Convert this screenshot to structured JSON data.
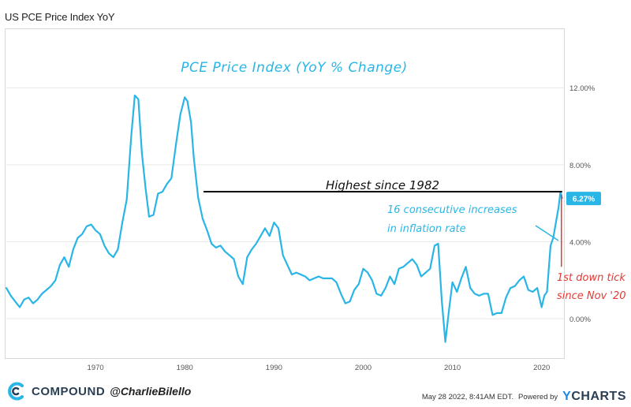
{
  "header": {
    "title": "US PCE Price Index YoY"
  },
  "footer": {
    "brand": "COMPOUND",
    "handle": "@CharlieBilello",
    "timestamp": "May 28 2022, 8:41AM EDT.",
    "powered_by": "Powered by",
    "provider_first": "Y",
    "provider_rest": "CHARTS"
  },
  "colors": {
    "series": "#29b6e6",
    "annotation_line": "#000000",
    "annotation_red": "#e53935",
    "grid": "#e9e9e9",
    "label_badge": "#29b6e6"
  },
  "chart_data": {
    "type": "line",
    "title": "PCE Price Index (YoY % Change)",
    "xlabel": "",
    "ylabel": "",
    "xlim": [
      1960,
      2022.5
    ],
    "ylim": [
      -2.0,
      15.0
    ],
    "x_ticks": [
      1970,
      1980,
      1990,
      2000,
      2010,
      2020
    ],
    "y_ticks": [
      {
        "value": 12,
        "label": "12.00%"
      },
      {
        "value": 8,
        "label": "8.00%"
      },
      {
        "value": 4,
        "label": "4.00%"
      },
      {
        "value": 0,
        "label": "0.00%"
      }
    ],
    "grid": "horizontal",
    "series": [
      {
        "last_value_label": "6.27%",
        "x": [
          1960,
          1960.5,
          1961,
          1961.5,
          1962,
          1962.5,
          1963,
          1963.5,
          1964,
          1964.5,
          1965,
          1965.5,
          1966,
          1966.5,
          1967,
          1967.5,
          1968,
          1968.5,
          1969,
          1969.5,
          1970,
          1970.5,
          1971,
          1971.5,
          1972,
          1972.5,
          1973,
          1973.5,
          1974,
          1974.4,
          1974.8,
          1975.2,
          1975.6,
          1976,
          1976.5,
          1977,
          1977.5,
          1978,
          1978.5,
          1979,
          1979.5,
          1980,
          1980.3,
          1980.7,
          1981,
          1981.5,
          1982,
          1982.5,
          1983,
          1983.5,
          1984,
          1984.5,
          1985,
          1985.5,
          1986,
          1986.5,
          1987,
          1987.5,
          1988,
          1988.5,
          1989,
          1989.5,
          1990,
          1990.5,
          1991,
          1991.5,
          1992,
          1992.5,
          1993,
          1993.5,
          1994,
          1994.5,
          1995,
          1995.5,
          1996,
          1996.5,
          1997,
          1997.5,
          1998,
          1998.5,
          1999,
          1999.5,
          2000,
          2000.5,
          2001,
          2001.5,
          2002,
          2002.5,
          2003,
          2003.5,
          2004,
          2004.5,
          2005,
          2005.5,
          2006,
          2006.5,
          2007,
          2007.5,
          2008,
          2008.4,
          2008.8,
          2009.2,
          2009.6,
          2010,
          2010.5,
          2011,
          2011.5,
          2012,
          2012.5,
          2013,
          2013.5,
          2014,
          2014.5,
          2015,
          2015.5,
          2016,
          2016.5,
          2017,
          2017.5,
          2018,
          2018.5,
          2019,
          2019.5,
          2020,
          2020.3,
          2020.6,
          2021,
          2021.3,
          2021.6,
          2021.9,
          2022.1,
          2022.3
        ],
        "y": [
          1.6,
          1.2,
          0.9,
          0.6,
          1.0,
          1.1,
          0.8,
          1.0,
          1.3,
          1.5,
          1.7,
          2.0,
          2.8,
          3.2,
          2.7,
          3.6,
          4.2,
          4.4,
          4.8,
          4.9,
          4.6,
          4.4,
          3.8,
          3.4,
          3.2,
          3.6,
          5.0,
          6.2,
          9.5,
          11.6,
          11.4,
          8.6,
          6.8,
          5.3,
          5.4,
          6.5,
          6.6,
          7.0,
          7.3,
          9.0,
          10.6,
          11.5,
          11.3,
          10.2,
          8.4,
          6.3,
          5.2,
          4.6,
          3.9,
          3.7,
          3.8,
          3.5,
          3.3,
          3.1,
          2.2,
          1.8,
          3.2,
          3.6,
          3.9,
          4.3,
          4.7,
          4.3,
          5.0,
          4.7,
          3.3,
          2.8,
          2.3,
          2.4,
          2.3,
          2.2,
          2.0,
          2.1,
          2.2,
          2.1,
          2.1,
          2.1,
          1.9,
          1.3,
          0.8,
          0.9,
          1.5,
          1.8,
          2.6,
          2.4,
          2.0,
          1.3,
          1.2,
          1.6,
          2.2,
          1.8,
          2.6,
          2.7,
          2.9,
          3.1,
          2.8,
          2.2,
          2.4,
          2.6,
          3.8,
          3.9,
          1.0,
          -1.2,
          0.4,
          1.9,
          1.4,
          2.1,
          2.7,
          1.6,
          1.3,
          1.2,
          1.3,
          1.3,
          0.2,
          0.3,
          0.3,
          1.1,
          1.6,
          1.7,
          2.0,
          2.2,
          1.5,
          1.4,
          1.6,
          0.6,
          1.2,
          1.4,
          3.8,
          4.2,
          5.0,
          5.8,
          6.6,
          6.27
        ]
      }
    ],
    "annotations": [
      {
        "text": "Highest since 1982"
      },
      {
        "text_line1": "16 consecutive increases",
        "text_line2": "in inflation rate"
      },
      {
        "text_line1": "1st down tick",
        "text_line2": "since Nov '20"
      }
    ]
  }
}
